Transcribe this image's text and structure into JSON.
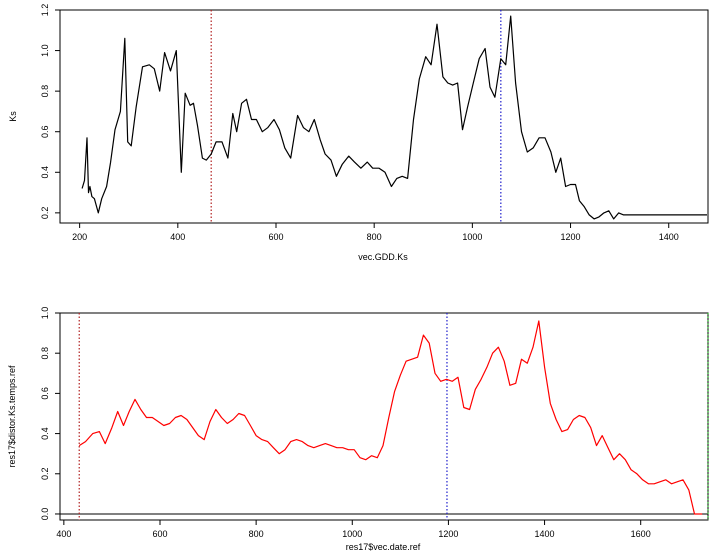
{
  "chart_data": [
    {
      "type": "line",
      "xlabel": "vec.GDD.Ks",
      "ylabel": "Ks",
      "xlim": [
        160,
        1480
      ],
      "ylim": [
        0.15,
        1.2
      ],
      "xticks": [
        200,
        400,
        600,
        800,
        1000,
        1200,
        1400
      ],
      "yticks": [
        0.2,
        0.4,
        0.6,
        0.8,
        1.0,
        1.2
      ],
      "xtick_labels": [
        "200",
        "400",
        "600",
        "800",
        "1000",
        "1200",
        "1400"
      ],
      "ytick_labels": [
        "0.2",
        "0.4",
        "0.6",
        "0.8",
        "1.0",
        "1.2"
      ],
      "vlines": [
        {
          "x": 468,
          "color": "#b22222",
          "style": "dotted"
        },
        {
          "x": 1058,
          "color": "#1f1fcc",
          "style": "dotted"
        }
      ],
      "series": [
        {
          "color": "#000000",
          "x": [
            205,
            210,
            215,
            218,
            221,
            225,
            230,
            238,
            245,
            255,
            263,
            272,
            283,
            292,
            298,
            305,
            315,
            328,
            342,
            352,
            363,
            373,
            385,
            397,
            407,
            415,
            425,
            432,
            440,
            450,
            458,
            468,
            478,
            490,
            502,
            512,
            520,
            530,
            540,
            550,
            560,
            572,
            583,
            596,
            607,
            618,
            630,
            644,
            656,
            667,
            678,
            690,
            700,
            712,
            723,
            735,
            748,
            760,
            773,
            786,
            797,
            810,
            822,
            835,
            846,
            857,
            868,
            880,
            892,
            905,
            916,
            928,
            940,
            950,
            960,
            970,
            980,
            990,
            1002,
            1014,
            1026,
            1036,
            1046,
            1058,
            1068,
            1078,
            1088,
            1100,
            1112,
            1124,
            1136,
            1148,
            1160,
            1170,
            1180,
            1190,
            1200,
            1210,
            1218,
            1228,
            1238,
            1248,
            1258,
            1268,
            1278,
            1288,
            1298,
            1308,
            1318,
            1330,
            1340,
            1350,
            1360,
            1370,
            1380,
            1390,
            1400,
            1410,
            1420,
            1430,
            1440,
            1450,
            1460,
            1470,
            1478
          ],
          "y": [
            0.32,
            0.36,
            0.57,
            0.3,
            0.33,
            0.28,
            0.27,
            0.2,
            0.27,
            0.33,
            0.45,
            0.61,
            0.7,
            1.06,
            0.55,
            0.53,
            0.72,
            0.92,
            0.93,
            0.91,
            0.8,
            0.99,
            0.9,
            1.0,
            0.4,
            0.79,
            0.73,
            0.74,
            0.63,
            0.47,
            0.46,
            0.49,
            0.55,
            0.55,
            0.47,
            0.69,
            0.6,
            0.74,
            0.76,
            0.66,
            0.66,
            0.6,
            0.62,
            0.66,
            0.61,
            0.52,
            0.47,
            0.68,
            0.62,
            0.6,
            0.66,
            0.56,
            0.49,
            0.46,
            0.38,
            0.44,
            0.48,
            0.45,
            0.42,
            0.45,
            0.42,
            0.42,
            0.4,
            0.33,
            0.37,
            0.38,
            0.37,
            0.66,
            0.86,
            0.97,
            0.93,
            1.13,
            0.87,
            0.84,
            0.83,
            0.84,
            0.61,
            0.72,
            0.84,
            0.96,
            1.01,
            0.82,
            0.77,
            0.96,
            0.93,
            1.17,
            0.84,
            0.6,
            0.5,
            0.52,
            0.57,
            0.57,
            0.5,
            0.4,
            0.47,
            0.33,
            0.34,
            0.34,
            0.26,
            0.23,
            0.19,
            0.17,
            0.18,
            0.2,
            0.21,
            0.17,
            0.2,
            0.19,
            0.19,
            0.19,
            0.19,
            0.19,
            0.19,
            0.19,
            0.19,
            0.19,
            0.19,
            0.19,
            0.19,
            0.19,
            0.19,
            0.19,
            0.19,
            0.19,
            0.19
          ]
        }
      ]
    },
    {
      "type": "line",
      "xlabel": "res17$vec.date.ref",
      "ylabel": "res17$distor.Ks.temps.ref",
      "xlim": [
        392,
        1740
      ],
      "ylim": [
        -0.03,
        1.0
      ],
      "xticks": [
        400,
        600,
        800,
        1000,
        1200,
        1400,
        1600
      ],
      "yticks": [
        0.0,
        0.2,
        0.4,
        0.6,
        0.8,
        1.0
      ],
      "xtick_labels": [
        "400",
        "600",
        "800",
        "1000",
        "1200",
        "1400",
        "1600"
      ],
      "ytick_labels": [
        "0.0",
        "0.2",
        "0.4",
        "0.6",
        "0.8",
        "1.0"
      ],
      "hline": {
        "y": 0.0,
        "color": "#000000"
      },
      "vlines": [
        {
          "x": 432,
          "color": "#b22222",
          "style": "dotted"
        },
        {
          "x": 1197,
          "color": "#1f1fcc",
          "style": "dotted"
        },
        {
          "x": 1740,
          "color": "#22bb22",
          "style": "dotted"
        }
      ],
      "series": [
        {
          "color": "#ff0000",
          "x": [
            432,
            445,
            460,
            474,
            486,
            500,
            512,
            524,
            536,
            548,
            560,
            572,
            584,
            596,
            608,
            620,
            632,
            644,
            656,
            668,
            680,
            692,
            704,
            716,
            728,
            740,
            752,
            764,
            776,
            788,
            800,
            812,
            824,
            836,
            848,
            860,
            872,
            884,
            896,
            908,
            920,
            932,
            944,
            956,
            968,
            980,
            992,
            1004,
            1016,
            1028,
            1040,
            1052,
            1064,
            1076,
            1088,
            1100,
            1112,
            1124,
            1136,
            1148,
            1160,
            1172,
            1184,
            1196,
            1208,
            1220,
            1232,
            1244,
            1256,
            1268,
            1280,
            1292,
            1304,
            1316,
            1328,
            1340,
            1352,
            1364,
            1376,
            1388,
            1400,
            1412,
            1424,
            1436,
            1448,
            1460,
            1472,
            1484,
            1496,
            1508,
            1520,
            1532,
            1544,
            1556,
            1568,
            1580,
            1592,
            1604,
            1616,
            1628,
            1640,
            1652,
            1664,
            1676,
            1688,
            1700,
            1712,
            1720,
            1728
          ],
          "y": [
            0.34,
            0.36,
            0.4,
            0.41,
            0.35,
            0.43,
            0.51,
            0.44,
            0.51,
            0.57,
            0.52,
            0.48,
            0.48,
            0.46,
            0.44,
            0.45,
            0.48,
            0.49,
            0.47,
            0.43,
            0.39,
            0.37,
            0.46,
            0.52,
            0.48,
            0.45,
            0.47,
            0.5,
            0.49,
            0.44,
            0.39,
            0.37,
            0.36,
            0.33,
            0.3,
            0.32,
            0.36,
            0.37,
            0.36,
            0.34,
            0.33,
            0.34,
            0.35,
            0.34,
            0.33,
            0.33,
            0.32,
            0.32,
            0.28,
            0.27,
            0.29,
            0.28,
            0.34,
            0.48,
            0.61,
            0.69,
            0.76,
            0.77,
            0.78,
            0.89,
            0.85,
            0.7,
            0.66,
            0.67,
            0.66,
            0.68,
            0.53,
            0.52,
            0.62,
            0.67,
            0.73,
            0.8,
            0.83,
            0.76,
            0.64,
            0.65,
            0.77,
            0.75,
            0.83,
            0.96,
            0.73,
            0.55,
            0.47,
            0.41,
            0.42,
            0.47,
            0.49,
            0.48,
            0.43,
            0.34,
            0.39,
            0.33,
            0.27,
            0.3,
            0.27,
            0.22,
            0.2,
            0.17,
            0.15,
            0.15,
            0.16,
            0.17,
            0.15,
            0.16,
            0.17,
            0.12,
            0.0,
            0.0,
            0.0
          ]
        }
      ]
    }
  ]
}
